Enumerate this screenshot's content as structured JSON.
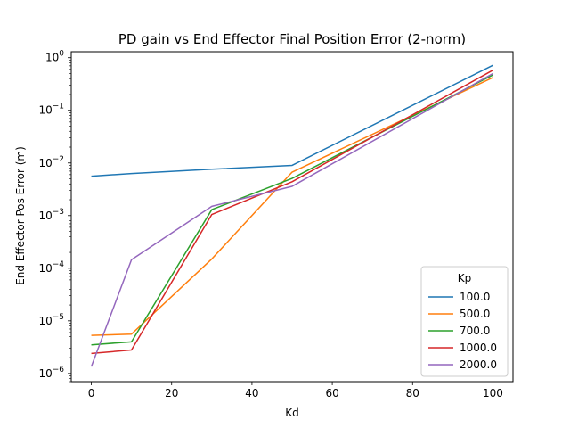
{
  "chart_data": {
    "type": "line",
    "title": "PD gain vs End Effector Final Position Error (2-norm)",
    "xlabel": "Kd",
    "ylabel": "End Effector Pos Error (m)",
    "xlim": [
      -5,
      105
    ],
    "ylim": [
      7e-07,
      1.3
    ],
    "yscale": "log",
    "x_ticks": [
      0,
      20,
      40,
      60,
      80,
      100
    ],
    "x_tick_labels": [
      "0",
      "20",
      "40",
      "60",
      "80",
      "100"
    ],
    "y_ticks": [
      1e-06,
      1e-05,
      0.0001,
      0.001,
      0.01,
      0.1,
      1
    ],
    "y_tick_labels": [
      {
        "base": "10",
        "exp": "−6"
      },
      {
        "base": "10",
        "exp": "−5"
      },
      {
        "base": "10",
        "exp": "−4"
      },
      {
        "base": "10",
        "exp": "−3"
      },
      {
        "base": "10",
        "exp": "−2"
      },
      {
        "base": "10",
        "exp": "−1"
      },
      {
        "base": "10",
        "exp": "0"
      }
    ],
    "grid": false,
    "x": [
      0,
      10,
      30,
      50,
      100
    ],
    "legend": {
      "title": "Kp",
      "placement": "lower-right"
    },
    "series": [
      {
        "name": "100.0",
        "color": "#1f77b4",
        "values": [
          0.0056,
          0.0063,
          0.0076,
          0.009,
          0.72
        ]
      },
      {
        "name": "500.0",
        "color": "#ff7f0e",
        "values": [
          5.3e-06,
          5.6e-06,
          0.00015,
          0.0067,
          0.42
        ]
      },
      {
        "name": "700.0",
        "color": "#2ca02c",
        "values": [
          3.5e-06,
          4e-06,
          0.0013,
          0.0051,
          0.47
        ]
      },
      {
        "name": "1000.0",
        "color": "#d62728",
        "values": [
          2.4e-06,
          2.8e-06,
          0.00105,
          0.0044,
          0.58
        ]
      },
      {
        "name": "2000.0",
        "color": "#9467bd",
        "values": [
          1.35e-06,
          0.000145,
          0.0015,
          0.0036,
          0.5
        ]
      }
    ]
  }
}
